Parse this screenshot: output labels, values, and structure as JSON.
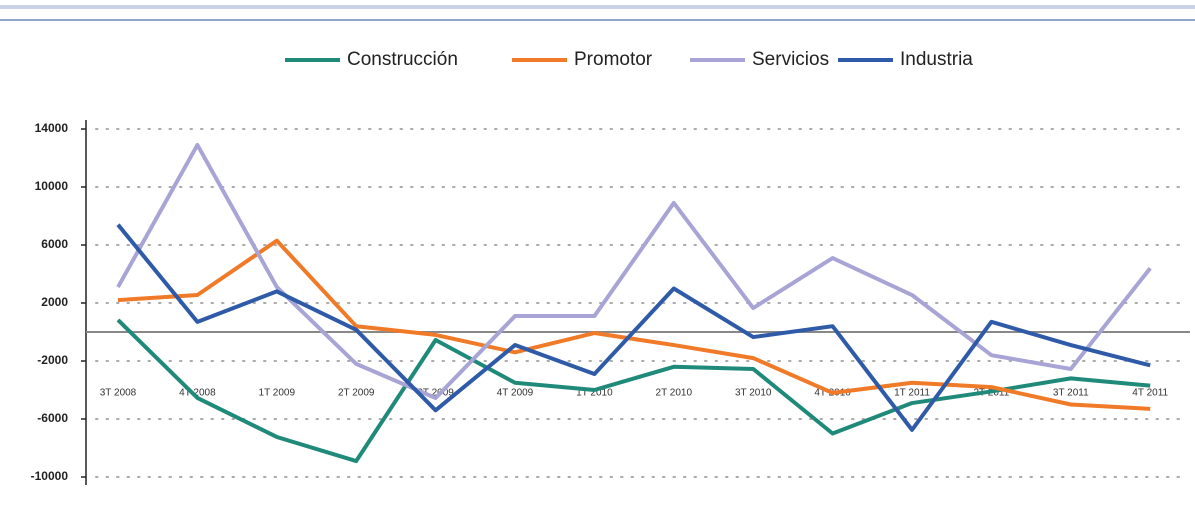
{
  "chart_data": {
    "type": "line",
    "categories": [
      "3T 2008",
      "4T 2008",
      "1T 2009",
      "2T 2009",
      "3T 2009",
      "4T 2009",
      "1T 2010",
      "2T 2010",
      "3T 2010",
      "4T 2010",
      "1T 2011",
      "2T 2011",
      "3T 2011",
      "4T 2011"
    ],
    "series": [
      {
        "name": "Construcción",
        "color": "#1f8a7a",
        "values": [
          830,
          -4550,
          -7240,
          -8900,
          -550,
          -3500,
          -4000,
          -2400,
          -2550,
          -7000,
          -4900,
          -4100,
          -3200,
          -3700
        ]
      },
      {
        "name": "Promotor",
        "color": "#f07a28",
        "values": [
          2200,
          2550,
          6300,
          400,
          -200,
          -1400,
          -70,
          -900,
          -1800,
          -4200,
          -3500,
          -3800,
          -5000,
          -5300
        ]
      },
      {
        "name": "Servicios",
        "color": "#a8a4d6",
        "values": [
          3100,
          12900,
          3100,
          -2200,
          -4550,
          1100,
          1100,
          8900,
          1650,
          5100,
          2550,
          -1600,
          -2550,
          4400
        ]
      },
      {
        "name": "Industria",
        "color": "#2e5aa8",
        "values": [
          7400,
          700,
          2800,
          150,
          -5400,
          -900,
          -2900,
          3000,
          -350,
          400,
          -6750,
          700,
          -900,
          -2300
        ]
      }
    ],
    "ylim": [
      -10000,
      14000
    ],
    "yticks": [
      14000,
      10000,
      6000,
      2000,
      -2000,
      -6000,
      -10000
    ],
    "grid": true,
    "legend": "top"
  }
}
